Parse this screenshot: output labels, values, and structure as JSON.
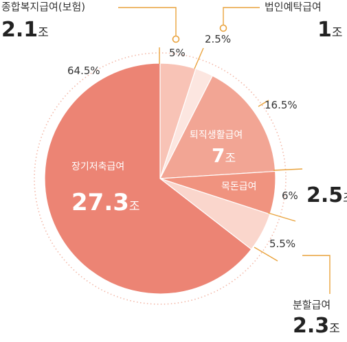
{
  "chart_data": {
    "type": "pie",
    "unit": "조",
    "slices": [
      {
        "label": "종합복지급여(보험)",
        "value_text": "2.1",
        "percent": 5,
        "percent_text": "5%",
        "color": "#F8C3B6"
      },
      {
        "label": "법인예탁급여",
        "value_text": "1",
        "percent": 2.5,
        "percent_text": "2.5%",
        "color": "#FCE6E0"
      },
      {
        "label": "퇴직생활급여",
        "value_text": "7",
        "percent": 16.5,
        "percent_text": "16.5%",
        "color": "#F2A594"
      },
      {
        "label": "목돈급여",
        "value_text": "2.5",
        "percent": 6,
        "percent_text": "6%",
        "color": "#F0937F"
      },
      {
        "label": "분할급여",
        "value_text": "2.3",
        "percent": 5.5,
        "percent_text": "5.5%",
        "color": "#FAD6CC"
      },
      {
        "label": "장기저축급여",
        "value_text": "27.3",
        "percent": 64.5,
        "percent_text": "64.5%",
        "color": "#EC8474"
      }
    ]
  },
  "colors": {
    "accent": "#E9A23B",
    "dotted_ring": "#F3B8A8"
  }
}
